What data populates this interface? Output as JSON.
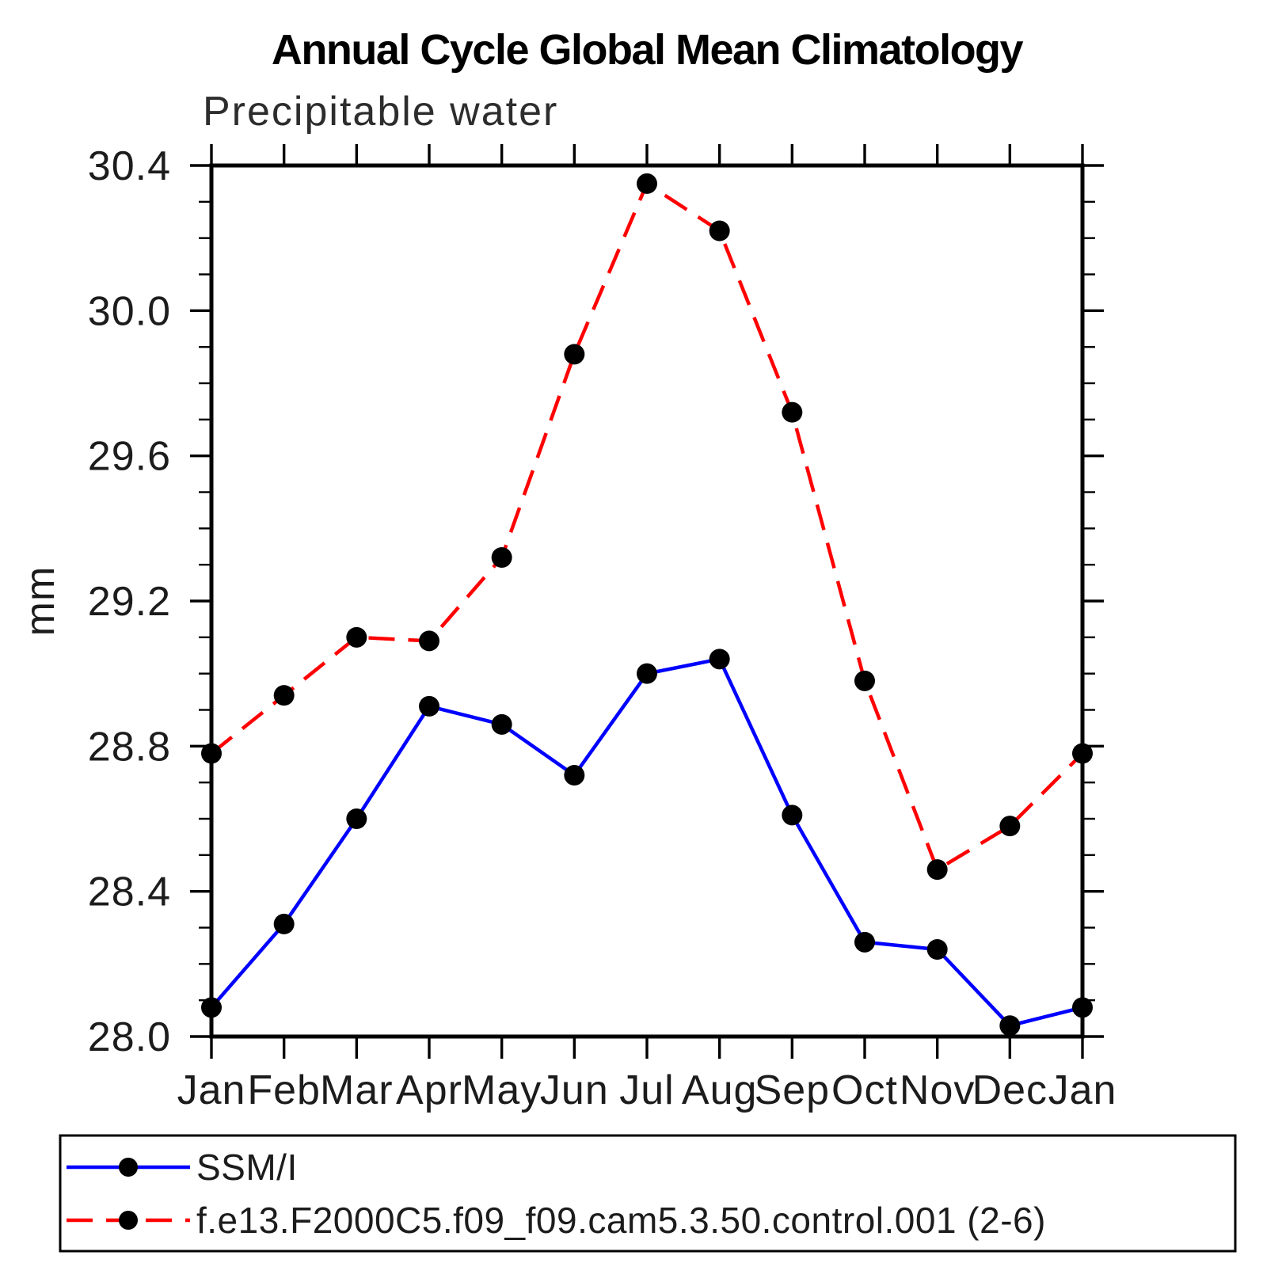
{
  "chart_data": {
    "type": "line",
    "title": "Annual Cycle Global Mean Climatology",
    "subtitle": "Precipitable water",
    "ylabel": "mm",
    "xlabel": "",
    "grid": "off",
    "legend_position": "bottom",
    "categories": [
      "Jan",
      "Feb",
      "Mar",
      "Apr",
      "May",
      "Jun",
      "Jul",
      "Aug",
      "Sep",
      "Oct",
      "Nov",
      "Dec",
      "Jan"
    ],
    "ylim": [
      28.0,
      30.4
    ],
    "ytick_major_interval": 0.4,
    "ytick_minor_interval": 0.1,
    "ytick_labels": [
      "28.0",
      "28.4",
      "28.8",
      "29.2",
      "29.6",
      "30.0",
      "30.4"
    ],
    "marker": {
      "shape": "filled-circle",
      "color": "#000000"
    },
    "series": [
      {
        "name": "SSM/I",
        "color": "#0000ff",
        "line_style": "solid",
        "values": [
          28.08,
          28.31,
          28.6,
          28.91,
          28.86,
          28.72,
          29.0,
          29.04,
          28.61,
          28.26,
          28.24,
          28.03,
          28.08
        ]
      },
      {
        "name": "f.e13.F2000C5.f09_f09.cam5.3.50.control.001 (2-6)",
        "color": "#ff0000",
        "line_style": "dashed",
        "values": [
          28.78,
          28.94,
          29.1,
          29.09,
          29.32,
          29.88,
          30.35,
          30.22,
          29.72,
          28.98,
          28.46,
          28.58,
          28.78
        ]
      }
    ]
  }
}
